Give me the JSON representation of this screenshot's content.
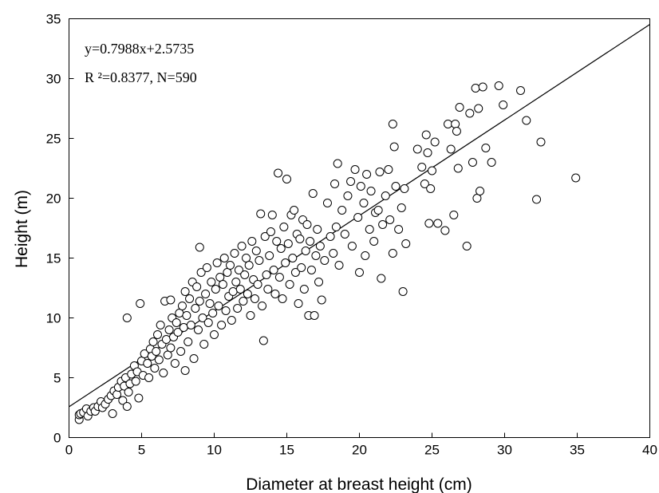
{
  "chart_data": {
    "type": "scatter",
    "xlabel": "Diameter at breast height (cm)",
    "ylabel": "Height (m)",
    "xlim": [
      0,
      40
    ],
    "ylim": [
      0,
      35
    ],
    "xticks": [
      0,
      5,
      10,
      15,
      20,
      25,
      30,
      35,
      40
    ],
    "yticks": [
      0,
      5,
      10,
      15,
      20,
      25,
      30,
      35
    ],
    "grid": false,
    "legend": "none",
    "annotations": {
      "equation": "y=0.7988x+2.5735",
      "stats": "R ²=0.8377, N=590"
    },
    "fit_line": {
      "slope": 0.7988,
      "intercept": 2.5735,
      "x_range": [
        0,
        40
      ]
    },
    "points_total": 590,
    "points": [
      [
        0.7,
        1.5
      ],
      [
        0.7,
        1.9
      ],
      [
        0.8,
        2.0
      ],
      [
        1.0,
        2.1
      ],
      [
        1.2,
        2.4
      ],
      [
        1.3,
        1.8
      ],
      [
        1.5,
        2.2
      ],
      [
        1.7,
        2.5
      ],
      [
        1.8,
        2.2
      ],
      [
        2.0,
        2.6
      ],
      [
        2.2,
        3.0
      ],
      [
        2.3,
        2.5
      ],
      [
        2.5,
        2.8
      ],
      [
        2.7,
        3.2
      ],
      [
        2.9,
        3.5
      ],
      [
        3.0,
        2.0
      ],
      [
        3.1,
        3.9
      ],
      [
        3.3,
        3.6
      ],
      [
        3.4,
        4.2
      ],
      [
        3.6,
        4.7
      ],
      [
        3.7,
        3.1
      ],
      [
        3.8,
        4.3
      ],
      [
        3.9,
        5.0
      ],
      [
        4.0,
        10.0
      ],
      [
        4.0,
        2.6
      ],
      [
        4.1,
        3.8
      ],
      [
        4.2,
        4.5
      ],
      [
        4.3,
        5.3
      ],
      [
        4.5,
        6.0
      ],
      [
        4.6,
        4.7
      ],
      [
        4.7,
        5.5
      ],
      [
        4.8,
        3.3
      ],
      [
        4.9,
        11.2
      ],
      [
        5.0,
        6.4
      ],
      [
        5.1,
        5.2
      ],
      [
        5.2,
        7.0
      ],
      [
        5.4,
        6.2
      ],
      [
        5.5,
        5.0
      ],
      [
        5.6,
        7.4
      ],
      [
        5.7,
        6.8
      ],
      [
        5.8,
        8.0
      ],
      [
        5.9,
        5.8
      ],
      [
        6.0,
        7.2
      ],
      [
        6.1,
        8.6
      ],
      [
        6.2,
        6.5
      ],
      [
        6.3,
        9.4
      ],
      [
        6.4,
        7.8
      ],
      [
        6.5,
        5.4
      ],
      [
        6.6,
        11.4
      ],
      [
        6.7,
        8.2
      ],
      [
        6.8,
        6.9
      ],
      [
        6.9,
        9.0
      ],
      [
        7.0,
        11.5
      ],
      [
        7.0,
        7.5
      ],
      [
        7.1,
        10.0
      ],
      [
        7.2,
        8.4
      ],
      [
        7.3,
        6.2
      ],
      [
        7.4,
        9.6
      ],
      [
        7.5,
        8.8
      ],
      [
        7.6,
        10.4
      ],
      [
        7.7,
        7.2
      ],
      [
        7.8,
        11.0
      ],
      [
        7.9,
        9.2
      ],
      [
        8.0,
        5.6
      ],
      [
        8.0,
        12.2
      ],
      [
        8.1,
        10.2
      ],
      [
        8.2,
        8.0
      ],
      [
        8.3,
        11.6
      ],
      [
        8.4,
        9.4
      ],
      [
        8.5,
        13.0
      ],
      [
        8.6,
        6.6
      ],
      [
        8.7,
        10.8
      ],
      [
        8.8,
        12.6
      ],
      [
        8.9,
        9.0
      ],
      [
        9.0,
        15.9
      ],
      [
        9.0,
        11.4
      ],
      [
        9.1,
        13.8
      ],
      [
        9.2,
        10.0
      ],
      [
        9.3,
        7.8
      ],
      [
        9.4,
        12.0
      ],
      [
        9.5,
        14.2
      ],
      [
        9.6,
        9.6
      ],
      [
        9.7,
        11.2
      ],
      [
        9.8,
        13.0
      ],
      [
        9.9,
        10.4
      ],
      [
        10.0,
        8.6
      ],
      [
        10.1,
        12.4
      ],
      [
        10.2,
        14.6
      ],
      [
        10.3,
        11.0
      ],
      [
        10.4,
        13.4
      ],
      [
        10.5,
        9.4
      ],
      [
        10.6,
        12.8
      ],
      [
        10.7,
        15.0
      ],
      [
        10.8,
        10.6
      ],
      [
        10.9,
        13.8
      ],
      [
        11.0,
        11.8
      ],
      [
        11.1,
        14.4
      ],
      [
        11.2,
        9.8
      ],
      [
        11.3,
        12.2
      ],
      [
        11.4,
        15.4
      ],
      [
        11.5,
        13.0
      ],
      [
        11.6,
        10.8
      ],
      [
        11.7,
        14.0
      ],
      [
        11.8,
        12.4
      ],
      [
        11.9,
        16.0
      ],
      [
        12.0,
        11.4
      ],
      [
        12.1,
        13.6
      ],
      [
        12.2,
        15.0
      ],
      [
        12.3,
        12.0
      ],
      [
        12.4,
        14.4
      ],
      [
        12.5,
        10.2
      ],
      [
        12.6,
        16.4
      ],
      [
        12.7,
        13.2
      ],
      [
        12.8,
        11.6
      ],
      [
        12.9,
        15.6
      ],
      [
        13.0,
        12.8
      ],
      [
        13.1,
        14.8
      ],
      [
        13.2,
        18.7
      ],
      [
        13.3,
        11.0
      ],
      [
        13.4,
        8.1
      ],
      [
        13.5,
        16.8
      ],
      [
        13.6,
        13.6
      ],
      [
        13.7,
        12.4
      ],
      [
        13.8,
        15.2
      ],
      [
        13.9,
        17.2
      ],
      [
        14.0,
        18.6
      ],
      [
        14.1,
        14.0
      ],
      [
        14.2,
        12.0
      ],
      [
        14.3,
        16.4
      ],
      [
        14.4,
        22.1
      ],
      [
        14.5,
        13.4
      ],
      [
        14.6,
        15.8
      ],
      [
        14.7,
        11.6
      ],
      [
        14.8,
        17.6
      ],
      [
        14.9,
        14.6
      ],
      [
        15.0,
        21.6
      ],
      [
        15.1,
        16.2
      ],
      [
        15.2,
        12.8
      ],
      [
        15.3,
        18.6
      ],
      [
        15.4,
        15.0
      ],
      [
        15.5,
        19.0
      ],
      [
        15.6,
        13.8
      ],
      [
        15.7,
        17.0
      ],
      [
        15.8,
        11.2
      ],
      [
        15.9,
        16.6
      ],
      [
        16.0,
        14.2
      ],
      [
        16.1,
        18.2
      ],
      [
        16.2,
        12.4
      ],
      [
        16.3,
        15.6
      ],
      [
        16.4,
        17.8
      ],
      [
        16.5,
        10.2
      ],
      [
        16.6,
        16.4
      ],
      [
        16.7,
        14.0
      ],
      [
        16.8,
        20.4
      ],
      [
        16.9,
        10.2
      ],
      [
        17.0,
        15.2
      ],
      [
        17.1,
        17.4
      ],
      [
        17.2,
        13.0
      ],
      [
        17.3,
        16.0
      ],
      [
        17.4,
        11.5
      ],
      [
        17.6,
        14.8
      ],
      [
        17.8,
        19.6
      ],
      [
        18.0,
        16.8
      ],
      [
        18.2,
        15.4
      ],
      [
        18.3,
        21.2
      ],
      [
        18.4,
        17.6
      ],
      [
        18.5,
        22.9
      ],
      [
        18.6,
        14.4
      ],
      [
        18.8,
        19.0
      ],
      [
        19.0,
        17.0
      ],
      [
        19.2,
        20.2
      ],
      [
        19.4,
        21.4
      ],
      [
        19.5,
        16.0
      ],
      [
        19.7,
        22.4
      ],
      [
        19.9,
        18.4
      ],
      [
        20.0,
        13.8
      ],
      [
        20.1,
        21.0
      ],
      [
        20.3,
        19.6
      ],
      [
        20.4,
        15.2
      ],
      [
        20.5,
        22.0
      ],
      [
        20.7,
        17.4
      ],
      [
        20.8,
        20.6
      ],
      [
        21.0,
        16.4
      ],
      [
        21.1,
        18.8
      ],
      [
        21.3,
        19.0
      ],
      [
        21.4,
        22.2
      ],
      [
        21.5,
        13.3
      ],
      [
        21.6,
        17.8
      ],
      [
        21.8,
        20.2
      ],
      [
        22.0,
        22.4
      ],
      [
        22.1,
        18.2
      ],
      [
        22.3,
        15.4
      ],
      [
        22.3,
        26.2
      ],
      [
        22.4,
        24.3
      ],
      [
        22.5,
        21.0
      ],
      [
        22.7,
        17.4
      ],
      [
        22.9,
        19.2
      ],
      [
        23.0,
        12.2
      ],
      [
        23.1,
        20.8
      ],
      [
        23.2,
        16.2
      ],
      [
        24.0,
        24.1
      ],
      [
        24.3,
        22.6
      ],
      [
        24.5,
        21.2
      ],
      [
        24.6,
        25.3
      ],
      [
        24.7,
        23.8
      ],
      [
        24.8,
        17.9
      ],
      [
        24.9,
        20.8
      ],
      [
        25.0,
        22.3
      ],
      [
        25.2,
        24.7
      ],
      [
        25.4,
        17.9
      ],
      [
        25.9,
        17.3
      ],
      [
        26.1,
        26.2
      ],
      [
        26.3,
        24.1
      ],
      [
        26.5,
        18.6
      ],
      [
        26.6,
        26.2
      ],
      [
        26.7,
        25.6
      ],
      [
        26.8,
        22.5
      ],
      [
        26.9,
        27.6
      ],
      [
        27.4,
        16.0
      ],
      [
        27.6,
        27.1
      ],
      [
        27.8,
        23.0
      ],
      [
        28.0,
        29.2
      ],
      [
        28.1,
        20.0
      ],
      [
        28.2,
        27.5
      ],
      [
        28.3,
        20.6
      ],
      [
        28.5,
        29.3
      ],
      [
        28.7,
        24.2
      ],
      [
        29.1,
        23.0
      ],
      [
        29.6,
        29.4
      ],
      [
        29.9,
        27.8
      ],
      [
        31.1,
        29.0
      ],
      [
        31.5,
        26.5
      ],
      [
        32.2,
        19.9
      ],
      [
        32.5,
        24.7
      ],
      [
        34.9,
        21.7
      ]
    ]
  }
}
